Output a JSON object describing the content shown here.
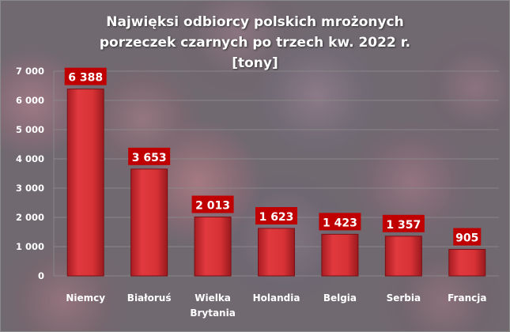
{
  "chart_data": {
    "type": "bar",
    "title": "Najwięksi odbiorcy polskich mrożonych porzeczek czarnych po trzech kw. 2022 r. [tony]",
    "categories": [
      [
        "Niemcy"
      ],
      [
        "Białoruś"
      ],
      [
        "Wielka",
        "Brytania"
      ],
      [
        "Holandia"
      ],
      [
        "Belgia"
      ],
      [
        "Serbia"
      ],
      [
        "Francja"
      ]
    ],
    "values": [
      6388,
      3653,
      2013,
      1623,
      1423,
      1357,
      905
    ],
    "data_labels": [
      "6 388",
      "3 653",
      "2 013",
      "1 623",
      "1 423",
      "1 357",
      "905"
    ],
    "yticks": [
      "0",
      "1 000",
      "2 000",
      "3 000",
      "4 000",
      "5 000",
      "6 000",
      "7 000"
    ],
    "ylim": [
      0,
      7000
    ],
    "grid": true,
    "legend": "none",
    "colors": {
      "bar": "#d8353a",
      "label_bg": "#c00000"
    }
  }
}
